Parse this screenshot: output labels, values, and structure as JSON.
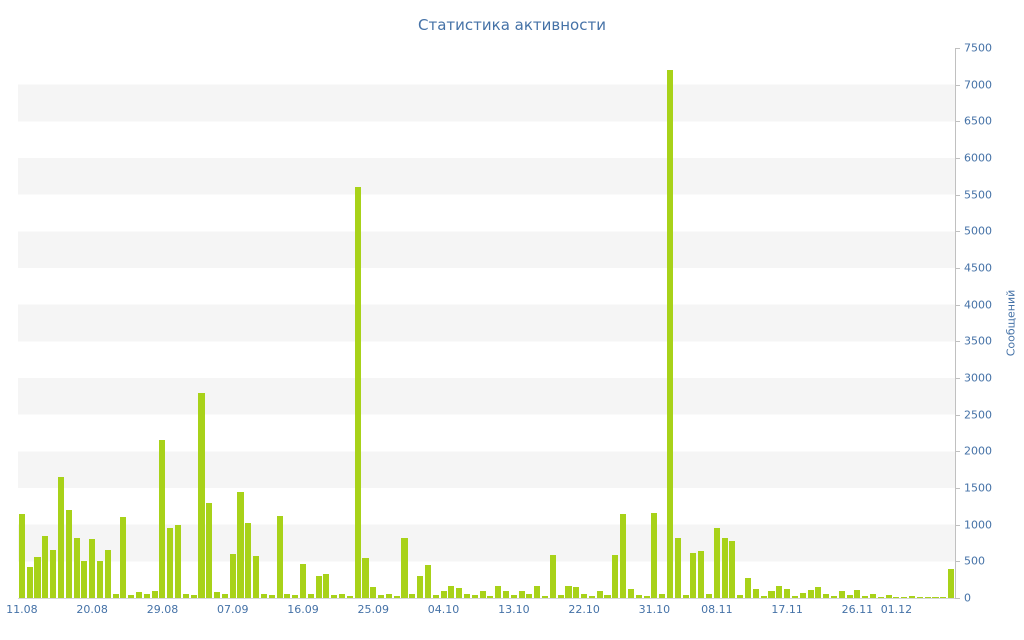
{
  "chart_data": {
    "type": "bar",
    "title": "Статистика активности",
    "ylabel": "Сообщений",
    "xlabel": "",
    "ylim": [
      0,
      7500
    ],
    "y_tick_interval": 500,
    "y_tick_labels": [
      "0",
      "500",
      "1000",
      "1500",
      "2000",
      "2500",
      "3000",
      "3500",
      "4000",
      "4500",
      "5000",
      "5500",
      "6000",
      "6500",
      "7000",
      "7500"
    ],
    "x_tick_labels": [
      "11.08",
      "20.08",
      "29.08",
      "07.09",
      "16.09",
      "25.09",
      "04.10",
      "13.10",
      "22.10",
      "31.10",
      "08.11",
      "17.11",
      "26.11",
      "01.12"
    ],
    "x_tick_indices": [
      0,
      9,
      18,
      27,
      36,
      45,
      54,
      63,
      72,
      81,
      89,
      98,
      107,
      112
    ],
    "values": [
      1150,
      420,
      560,
      850,
      650,
      1650,
      1200,
      820,
      500,
      800,
      500,
      650,
      60,
      1100,
      40,
      80,
      60,
      100,
      2150,
      950,
      1000,
      60,
      40,
      2800,
      1300,
      80,
      60,
      600,
      1450,
      1020,
      570,
      60,
      40,
      1120,
      60,
      40,
      470,
      60,
      300,
      330,
      40,
      60,
      30,
      5600,
      540,
      150,
      40,
      60,
      30,
      820,
      60,
      300,
      450,
      40,
      100,
      160,
      130,
      60,
      40,
      100,
      30,
      160,
      90,
      40,
      100,
      60,
      160,
      30,
      580,
      40,
      160,
      150,
      60,
      30,
      100,
      40,
      580,
      1150,
      120,
      40,
      30,
      1160,
      60,
      7200,
      820,
      40,
      620,
      640,
      60,
      960,
      820,
      780,
      40,
      270,
      120,
      30,
      90,
      160,
      120,
      30,
      70,
      110,
      150,
      60,
      30,
      100,
      40,
      110,
      30,
      60,
      20,
      40,
      20,
      10,
      30,
      10,
      20,
      10,
      20,
      390
    ],
    "grid": "alternating-bands",
    "legend": "none",
    "colors": {
      "bar": "#a8d219",
      "band": "#f5f5f5",
      "text": "#4572a7",
      "axis_line": "#c0c0c0",
      "background": "#ffffff"
    }
  }
}
